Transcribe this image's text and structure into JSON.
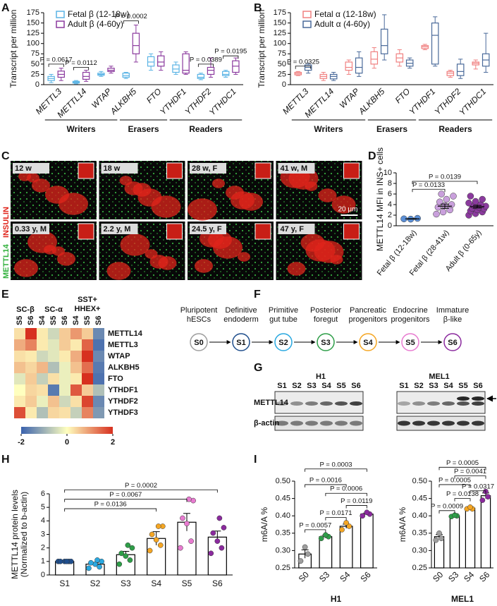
{
  "figure": {
    "panel_labels": [
      "A",
      "B",
      "C",
      "D",
      "E",
      "F",
      "G",
      "H",
      "I"
    ],
    "C": {
      "stain_1": "METTL14",
      "stain_2": "INSULIN",
      "images": [
        "12 w",
        "18 w",
        "28 w, F",
        "41 w, M",
        "0.33 y, M",
        "2.2 y, M",
        "24.5 y, F",
        "47 y, F"
      ],
      "scale_bar": "20 µm"
    },
    "F": {
      "stages": [
        {
          "label": [
            "Pluripotent",
            "hESCs"
          ],
          "id": "S0",
          "color": "#9e9e9e"
        },
        {
          "label": [
            "Definitive",
            "endoderm"
          ],
          "id": "S1",
          "color": "#1f4e8c"
        },
        {
          "label": [
            "Primitive",
            "gut tube"
          ],
          "id": "S2",
          "color": "#29a8e0"
        },
        {
          "label": [
            "Posterior",
            "foregut"
          ],
          "id": "S3",
          "color": "#2e9e48"
        },
        {
          "label": [
            "Pancreatic",
            "progenitors"
          ],
          "id": "S4",
          "color": "#f5a623"
        },
        {
          "label": [
            "Endocrine",
            "progenitors"
          ],
          "id": "S5",
          "color": "#e87bd0"
        },
        {
          "label": [
            "Immature",
            "β-like"
          ],
          "id": "S6",
          "color": "#8b2a9e"
        }
      ]
    },
    "G": {
      "cell_lines": [
        "H1",
        "MEL1"
      ],
      "lanes": [
        "S1",
        "S2",
        "S3",
        "S4",
        "S5",
        "S6"
      ],
      "rows": [
        "METTL14",
        "β-actin"
      ]
    }
  },
  "chart_data": [
    {
      "type": "box",
      "y_label": "Transcript per million",
      "categories": [
        "METTL3",
        "METTL14",
        "WTAP",
        "ALKBH5",
        "FTO",
        "YTHDF1",
        "YTHDF2",
        "YTHDC1"
      ],
      "groups": [
        "Writers",
        "Erasers",
        "Readers"
      ],
      "series": [
        {
          "name": "Fetal β (12-18w)",
          "color": "#5bb4e5",
          "values": [
            [
              5,
              10,
              15,
              20,
              25
            ],
            [
              2,
              4,
              6,
              8,
              10
            ],
            [
              20,
              23,
              25,
              28,
              32
            ],
            [
              15,
              18,
              22,
              28,
              30
            ],
            [
              35,
              45,
              55,
              68,
              75
            ],
            [
              25,
              30,
              38,
              48,
              55
            ],
            [
              12,
              15,
              18,
              25,
              28
            ],
            [
              18,
              22,
              25,
              32,
              35
            ]
          ]
        },
        {
          "name": "Adult β (4-60y)",
          "color": "#8b3a9e",
          "values": [
            [
              10,
              18,
              25,
              33,
              40
            ],
            [
              8,
              13,
              20,
              30,
              35
            ],
            [
              28,
              32,
              35,
              40,
              45
            ],
            [
              55,
              75,
              95,
              125,
              145
            ],
            [
              35,
              45,
              55,
              70,
              80
            ],
            [
              25,
              28,
              35,
              75,
              80
            ],
            [
              18,
              25,
              35,
              42,
              65
            ],
            [
              25,
              30,
              45,
              58,
              65
            ]
          ]
        }
      ],
      "ylim": [
        0,
        175
      ],
      "yticks": [
        0,
        25,
        50,
        75,
        100,
        125,
        150,
        175
      ],
      "annotations": [
        {
          "text": "P = 0.0617",
          "category": "METTL3",
          "y": 50
        },
        {
          "text": "P = 0.0112",
          "category": "METTL14",
          "y": 42
        },
        {
          "text": "P = 0.0002",
          "category": "ALKBH5",
          "y": 155
        },
        {
          "text": "P = 0.0389",
          "category": "YTHDF2",
          "y": 50
        },
        {
          "text": "P = 0.0195",
          "category": "YTHDC1",
          "y": 70
        }
      ]
    },
    {
      "type": "box",
      "y_label": "Transcript per million",
      "categories": [
        "METTL3",
        "METTL14",
        "WTAP",
        "ALKBH5",
        "FTO",
        "YTHDF1",
        "YTHDF2",
        "YTHDC1"
      ],
      "groups": [
        "Writers",
        "Erasers",
        "Readers"
      ],
      "series": [
        {
          "name": "Fetal α (12-18w)",
          "color": "#f08080",
          "values": [
            [
              22,
              24,
              27,
              30,
              32
            ],
            [
              10,
              15,
              20,
              25,
              30
            ],
            [
              25,
              35,
              42,
              55,
              60
            ],
            [
              40,
              50,
              62,
              80,
              90
            ],
            [
              45,
              55,
              65,
              75,
              85
            ],
            [
              85,
              88,
              92,
              95,
              98
            ],
            [
              18,
              22,
              28,
              32,
              35
            ],
            [
              38,
              48,
              52,
              55,
              60
            ]
          ]
        },
        {
          "name": "Adult α (4-60y)",
          "color": "#4a6a9a",
          "values": [
            [
              28,
              35,
              42,
              48,
              52
            ],
            [
              10,
              14,
              20,
              25,
              30
            ],
            [
              20,
              28,
              42,
              65,
              80
            ],
            [
              60,
              75,
              95,
              135,
              170
            ],
            [
              40,
              45,
              52,
              60,
              65
            ],
            [
              45,
              50,
              120,
              150,
              165
            ],
            [
              15,
              22,
              32,
              50,
              62
            ],
            [
              30,
              45,
              60,
              75,
              125
            ]
          ]
        }
      ],
      "ylim": [
        0,
        175
      ],
      "yticks": [
        0,
        25,
        50,
        75,
        100,
        125,
        150,
        175
      ],
      "annotations": [
        {
          "text": "P = 0.0325",
          "category": "METTL3",
          "y": 45
        }
      ]
    },
    {
      "type": "dot",
      "y_label": "METTL14 MFI in INS+ cells",
      "categories": [
        "Fetal β (12-18w)",
        "Fetal β (28-41w)",
        "Adult β (0-65y)"
      ],
      "colors": [
        "#5b8fd6",
        "#c9a0dc",
        "#8b3a9e"
      ],
      "points": [
        [
          1.3,
          1.25,
          1.4
        ],
        [
          2.2,
          2.6,
          3.0,
          3.5,
          3.8,
          4.0,
          4.5,
          5.0,
          5.6,
          6.0
        ],
        [
          2.0,
          2.3,
          2.6,
          2.8,
          3.0,
          3.2,
          3.3,
          3.5,
          3.7,
          3.8,
          4.0,
          4.3,
          4.6,
          5.0,
          5.6
        ]
      ],
      "means": [
        1.3,
        3.7,
        3.6
      ],
      "errors": [
        0.05,
        0.4,
        0.25
      ],
      "ylim": [
        0,
        10
      ],
      "yticks": [
        0,
        2,
        4,
        6,
        8,
        10
      ],
      "annotations": [
        {
          "text": "P = 0.0133",
          "from": "Fetal β (12-18w)",
          "to": "Fetal β (28-41w)",
          "y": 6.9
        },
        {
          "text": "P = 0.0139",
          "from": "Fetal β (12-18w)",
          "to": "Adult β (0-65y)",
          "y": 8.4
        }
      ]
    },
    {
      "type": "heatmap",
      "column_groups": [
        [
          "SC-β"
        ],
        [
          "SC-α"
        ],
        [
          "SST+",
          "HHEX+"
        ]
      ],
      "columns": [
        "S5",
        "S6",
        "S4",
        "S5",
        "S6",
        "S4",
        "S5",
        "S6"
      ],
      "rows": [
        "METTL14",
        "METTL3",
        "WTAP",
        "ALKBH5",
        "FTO",
        "YTHDF1",
        "YTHDF2",
        "YTHDF3"
      ],
      "values": [
        [
          0.3,
          2,
          0.2,
          -0.5,
          0.5,
          1,
          0.5,
          -1.5
        ],
        [
          0.8,
          1.2,
          0.2,
          -0.3,
          0.5,
          0.2,
          1.5,
          -1.8
        ],
        [
          0.3,
          0.2,
          -0.5,
          -0.3,
          0.2,
          0.8,
          2,
          -1.5
        ],
        [
          0.6,
          0.4,
          0.7,
          -0.8,
          -0.2,
          0.6,
          1.4,
          -1.7
        ],
        [
          -0.3,
          0.5,
          -0.6,
          0.3,
          -0.2,
          0.2,
          2,
          -1.8
        ],
        [
          0,
          0.4,
          0.3,
          -1.7,
          -0.2,
          1.6,
          0.5,
          -0.8
        ],
        [
          0.2,
          0.5,
          -0.2,
          0.6,
          -0.5,
          0.3,
          1.8,
          -1.5
        ],
        [
          1.7,
          0.2,
          -0.8,
          0.4,
          0.3,
          -0.6,
          1.2,
          -1.3
        ]
      ],
      "zlim": [
        -2,
        2
      ],
      "colorbar_ticks": [
        -2,
        0,
        2
      ],
      "colors": [
        "#3a62ad",
        "#ffffbf",
        "#d7301f"
      ]
    },
    {
      "type": "bar",
      "y_label": [
        "METTL14 protein levels",
        "(Normalized to b-actin)"
      ],
      "categories": [
        "S1",
        "S2",
        "S3",
        "S4",
        "S5",
        "S6"
      ],
      "colors": [
        "#1f4e8c",
        "#29a8e0",
        "#2e9e48",
        "#f5a623",
        "#e87bd0",
        "#8b2a9e"
      ],
      "values": [
        1.0,
        0.8,
        1.5,
        2.7,
        3.9,
        2.8
      ],
      "errors": [
        0,
        0.1,
        0.25,
        0.5,
        0.65,
        0.45
      ],
      "points": [
        [
          1.0,
          1.0,
          1.0,
          1.0,
          1.0,
          1.0
        ],
        [
          0.5,
          0.6,
          0.8,
          0.9,
          1.0,
          1.1
        ],
        [
          0.8,
          1.1,
          1.4,
          1.6,
          2.0,
          2.2
        ],
        [
          1.8,
          2.2,
          2.6,
          3.0,
          3.6,
          3.6
        ],
        [
          2.0,
          2.5,
          3.8,
          4.2,
          5.5,
          5.6
        ],
        [
          1.6,
          2.0,
          2.5,
          3.1,
          3.5,
          4.2
        ]
      ],
      "ylim": [
        0,
        6
      ],
      "yticks": [
        0,
        1,
        2,
        3,
        4,
        5,
        6
      ],
      "annotations": [
        {
          "text": "P = 0.0136",
          "from": "S1",
          "to": "S4",
          "y": 4.9
        },
        {
          "text": "P = 0.0067",
          "from": "S1",
          "to": "S5",
          "y": 5.6
        },
        {
          "text": "P = 0.0002",
          "from": "S1",
          "to": "S6",
          "y": 6.3
        }
      ]
    },
    {
      "type": "bar",
      "y_label": [
        "m6A/A %"
      ],
      "x_label": "H1",
      "categories": [
        "S0",
        "S3",
        "S4",
        "S6"
      ],
      "colors": [
        "#9e9e9e",
        "#2e9e48",
        "#f5a623",
        "#8b2a9e"
      ],
      "values": [
        0.29,
        0.34,
        0.37,
        0.405
      ],
      "errors": [
        0.012,
        0.004,
        0.006,
        0.003
      ],
      "points": [
        [
          0.27,
          0.29,
          0.31
        ],
        [
          0.335,
          0.34,
          0.345
        ],
        [
          0.36,
          0.37,
          0.38
        ],
        [
          0.4,
          0.405,
          0.41
        ]
      ],
      "ylim": [
        0.25,
        0.5
      ],
      "yticks": [
        0.25,
        {
          "value": 0.3,
          "label": "0.30"
        },
        0.35,
        {
          "value": 0.4,
          "label": "0.40"
        },
        0.45,
        {
          "value": 0.5,
          "label": "0.50"
        }
      ],
      "annotations": [
        {
          "text": "P = 0.0003",
          "from": "S0",
          "to": "S6",
          "y": 0.535
        },
        {
          "text": "P = 0.0016",
          "from": "S0",
          "to": "S4",
          "y": 0.49
        },
        {
          "text": "P = 0.0006",
          "from": "S3",
          "to": "S6",
          "y": 0.465
        },
        {
          "text": "P = 0.0119",
          "from": "S4",
          "to": "S6",
          "y": 0.43
        },
        {
          "text": "P = 0.0171",
          "from": "S3",
          "to": "S4",
          "y": 0.395
        },
        {
          "text": "P = 0.0057",
          "from": "S0",
          "to": "S3",
          "y": 0.36
        }
      ]
    },
    {
      "type": "bar",
      "y_label": [
        "m6A/A %"
      ],
      "x_label": "MEL1",
      "categories": [
        "S0",
        "S3",
        "S4",
        "S6"
      ],
      "colors": [
        "#9e9e9e",
        "#2e9e48",
        "#f5a623",
        "#8b2a9e"
      ],
      "values": [
        0.34,
        0.4,
        0.422,
        0.458
      ],
      "errors": [
        0.006,
        0.002,
        0.002,
        0.008
      ],
      "points": [
        [
          0.33,
          0.335,
          0.35
        ],
        [
          0.398,
          0.4,
          0.402
        ],
        [
          0.42,
          0.42,
          0.425
        ],
        [
          0.445,
          0.455,
          0.47
        ]
      ],
      "ylim": [
        0.25,
        0.5
      ],
      "yticks": [
        0.25,
        {
          "value": 0.3,
          "label": "0.30"
        },
        0.35,
        {
          "value": 0.4,
          "label": "0.40"
        },
        0.45,
        {
          "value": 0.5,
          "label": "0.50"
        }
      ],
      "annotations": [
        {
          "text": "P = 0.0005",
          "from": "S0",
          "to": "S6",
          "y": 0.54
        },
        {
          "text": "P = 0.0041",
          "from": "S3",
          "to": "S6",
          "y": 0.515
        },
        {
          "text": "P = 0.0005",
          "from": "S0",
          "to": "S4",
          "y": 0.49
        },
        {
          "text": "P = 0.0317",
          "from": "S4",
          "to": "S6",
          "y": 0.472
        },
        {
          "text": "P = 0.0138",
          "from": "S3",
          "to": "S4",
          "y": 0.45
        },
        {
          "text": "P = 0.0009",
          "from": "S0",
          "to": "S3",
          "y": 0.415
        }
      ]
    }
  ]
}
